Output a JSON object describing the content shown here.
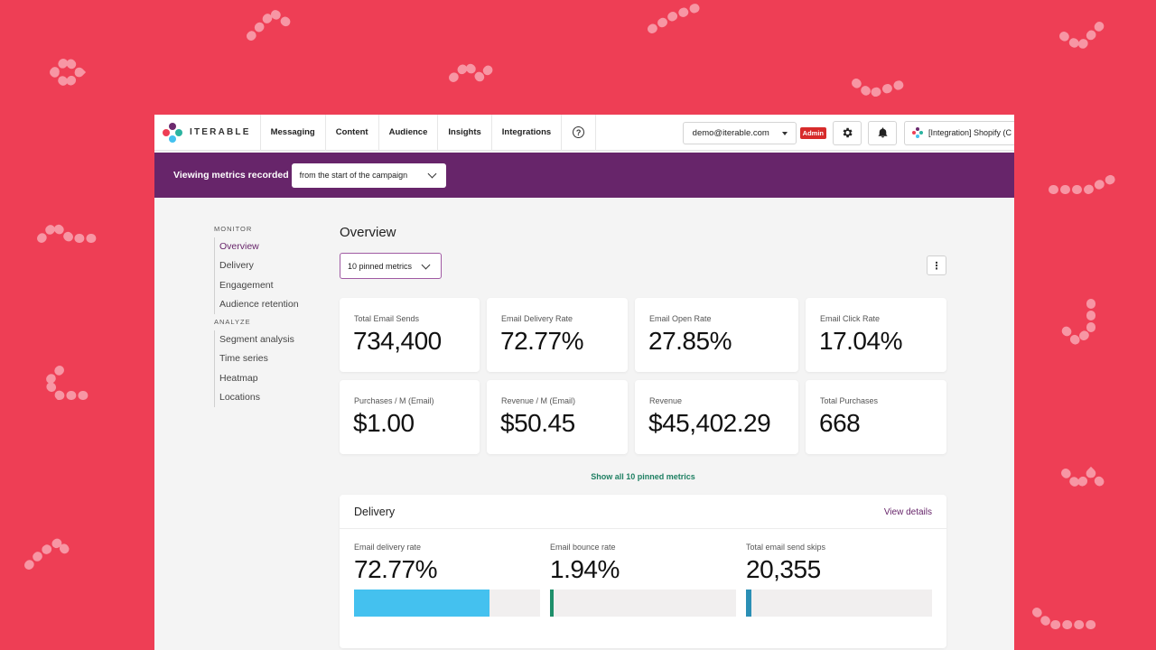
{
  "colors": {
    "background": "#ee3e55",
    "metrics_bar": "#67256a",
    "accent_purple": "#67256a",
    "link_green": "#1e7f62",
    "admin_red": "#d72b2b",
    "delivery_fill": "#44c1ef",
    "bounce_fill": "#1e8f6a",
    "skips_fill": "#2b8fb5"
  },
  "header": {
    "logo_text": "ITERABLE",
    "nav": [
      "Messaging",
      "Content",
      "Audience",
      "Insights",
      "Integrations"
    ],
    "help_icon": "question-circle-icon",
    "user_email": "demo@iterable.com",
    "admin_badge": "Admin",
    "settings_icon": "gear-icon",
    "notifications_icon": "bell-icon",
    "project": "[Integration] Shopify (C"
  },
  "metrics_bar": {
    "label": "Viewing metrics recorded",
    "range": "from the start of the campaign"
  },
  "sidebar": {
    "monitor_heading": "MONITOR",
    "monitor_items": [
      "Overview",
      "Delivery",
      "Engagement",
      "Audience retention"
    ],
    "analyze_heading": "ANALYZE",
    "analyze_items": [
      "Segment analysis",
      "Time series",
      "Heatmap",
      "Locations"
    ]
  },
  "main": {
    "title": "Overview",
    "pinned_select": "10 pinned metrics",
    "metric_cards": [
      {
        "label": "Total Email Sends",
        "value": "734,400"
      },
      {
        "label": "Email Delivery Rate",
        "value": "72.77%"
      },
      {
        "label": "Email Open Rate",
        "value": "27.85%"
      },
      {
        "label": "Email Click Rate",
        "value": "17.04%"
      },
      {
        "label": "Purchases / M (Email)",
        "value": "$1.00"
      },
      {
        "label": "Revenue / M (Email)",
        "value": "$50.45"
      },
      {
        "label": "Revenue",
        "value": "$45,402.29"
      },
      {
        "label": "Total Purchases",
        "value": "668"
      }
    ],
    "show_all": "Show all 10 pinned metrics"
  },
  "delivery": {
    "title": "Delivery",
    "view_details": "View details",
    "metrics": [
      {
        "label": "Email delivery rate",
        "value": "72.77%",
        "fraction": 0.7277
      },
      {
        "label": "Email bounce rate",
        "value": "1.94%",
        "fraction": 0.0194
      },
      {
        "label": "Total email send skips",
        "value": "20,355",
        "fraction": 0.027
      }
    ]
  }
}
